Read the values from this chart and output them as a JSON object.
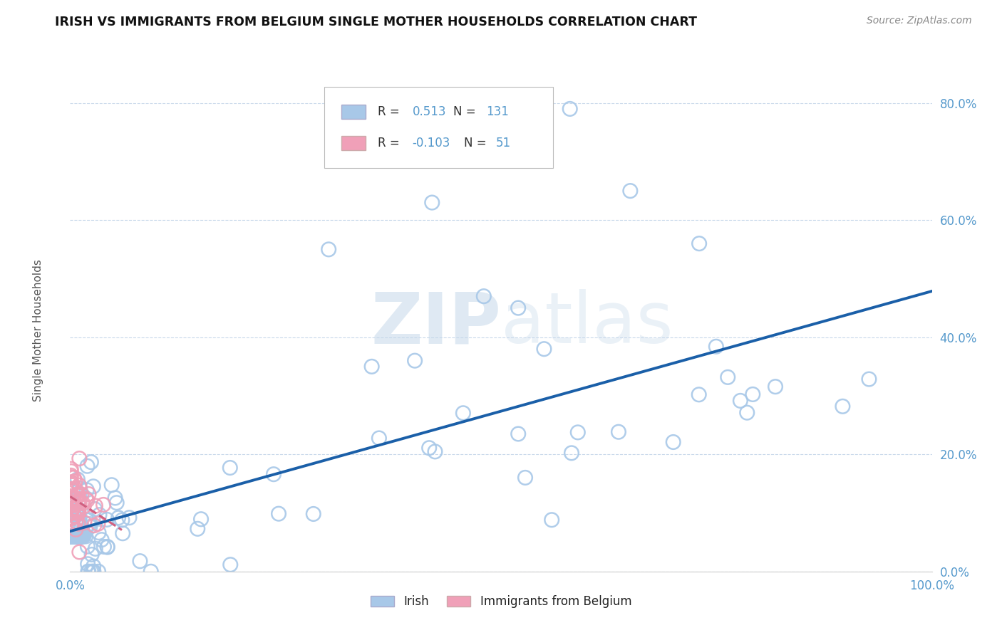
{
  "title": "IRISH VS IMMIGRANTS FROM BELGIUM SINGLE MOTHER HOUSEHOLDS CORRELATION CHART",
  "source": "Source: ZipAtlas.com",
  "ylabel": "Single Mother Households",
  "irish_r": 0.513,
  "irish_n": 131,
  "belgium_r": -0.103,
  "belgium_n": 51,
  "irish_color": "#a8c8e8",
  "irish_line_color": "#1a5fa8",
  "belgium_color": "#f0a0b8",
  "belgium_line_color": "#d06080",
  "background_color": "#ffffff",
  "grid_color": "#c8d8ea",
  "watermark_text": "ZIPatlas",
  "ytick_labels": [
    "0.0%",
    "20.0%",
    "40.0%",
    "60.0%",
    "80.0%"
  ],
  "ytick_values": [
    0.0,
    0.2,
    0.4,
    0.6,
    0.8
  ],
  "xmin": 0.0,
  "xmax": 1.0,
  "ymin": 0.0,
  "ymax": 0.9
}
